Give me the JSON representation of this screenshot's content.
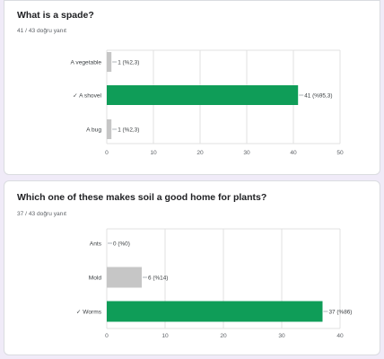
{
  "colors": {
    "correct": "#0f9d58",
    "incorrect": "#c6c6c6",
    "grid": "#e0e0e0",
    "axis_text": "#5f6368",
    "label_text": "#3c4043"
  },
  "questions": [
    {
      "title": "What is a spade?",
      "score_text": "41 / 43 doğru yanıt"
    },
    {
      "title": "Which one of these makes soil a good home for plants?",
      "score_text": "37 / 43 doğru yanıt"
    }
  ],
  "chart_data": [
    {
      "type": "bar",
      "orientation": "horizontal",
      "categories": [
        "A vegetable",
        "✓ A shovel",
        "A bug"
      ],
      "values": [
        1,
        41,
        1
      ],
      "correct": [
        false,
        true,
        false
      ],
      "data_labels": [
        "1 (%2,3)",
        "41 (%95,3)",
        "1 (%2,3)"
      ],
      "xlim": [
        0,
        50
      ],
      "xticks": [
        0,
        10,
        20,
        30,
        40,
        50
      ],
      "grid": true
    },
    {
      "type": "bar",
      "orientation": "horizontal",
      "categories": [
        "Ants",
        "Mold",
        "✓ Worms"
      ],
      "values": [
        0,
        6,
        37
      ],
      "correct": [
        false,
        false,
        true
      ],
      "data_labels": [
        "0 (%0)",
        "6 (%14)",
        "37 (%86)"
      ],
      "xlim": [
        0,
        40
      ],
      "xticks": [
        0,
        10,
        20,
        30,
        40
      ],
      "grid": true
    }
  ]
}
